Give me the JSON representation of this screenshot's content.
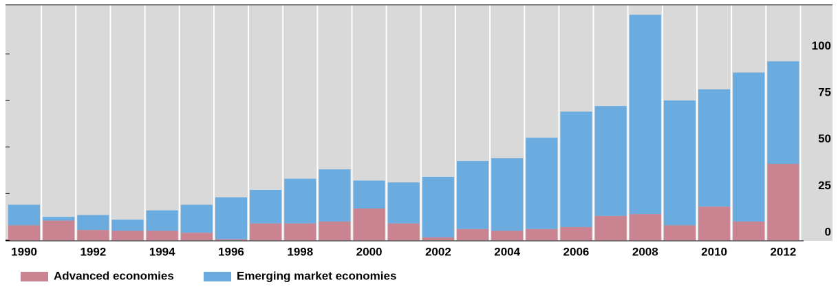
{
  "chart_data": {
    "type": "stacked-bar",
    "categories": [
      "1990",
      null,
      "1992",
      null,
      "1994",
      null,
      "1996",
      null,
      "1998",
      null,
      "2000",
      null,
      "2002",
      null,
      "2004",
      null,
      "2006",
      null,
      "2008",
      null,
      "2010",
      null,
      "2012"
    ],
    "series": [
      {
        "name": "Advanced economies",
        "color": "#c98391",
        "values": [
          8,
          10.5,
          5.5,
          5,
          5,
          4,
          0.5,
          9,
          9,
          10,
          17,
          9,
          1.5,
          6,
          5,
          6,
          7,
          13,
          14,
          8,
          18,
          10,
          41
        ]
      },
      {
        "name": "Emerging market economies",
        "color": "#6aace0",
        "values": [
          11,
          2,
          8,
          6,
          11,
          15,
          22.5,
          18,
          24,
          28,
          15,
          22,
          32.5,
          36.5,
          39,
          49,
          62,
          59,
          107,
          67,
          63,
          80,
          55
        ]
      }
    ],
    "ylim": [
      0,
      126
    ],
    "yticks": [
      0,
      25,
      50,
      75,
      100
    ],
    "grid": false,
    "legend": "bottom-left"
  }
}
